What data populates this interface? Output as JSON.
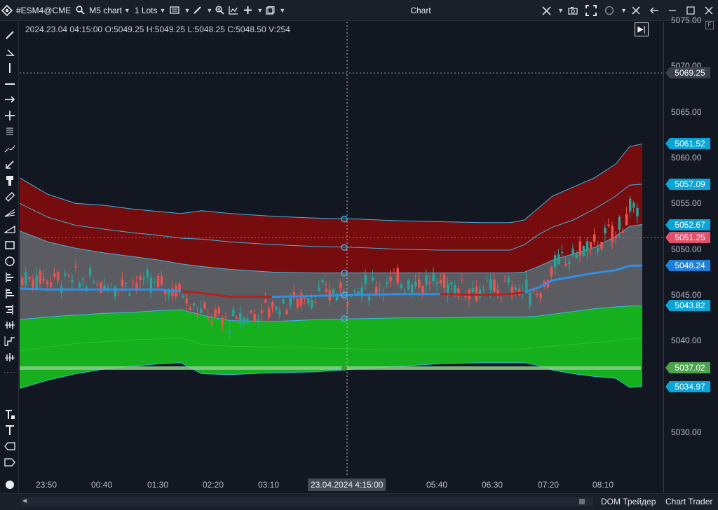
{
  "titlebar": {
    "logo_icon": "app-logo-icon",
    "symbol": "#ESM4@CME",
    "chart_type": "M5 chart",
    "lots": "1 Lots",
    "window_title": "Chart"
  },
  "ohlc_readout": "2024.23.04 04:15:00 O:5049.25 H:5049.25 L:5048.25 C:5048.50 V:254",
  "corner_button": "F",
  "price_axis": {
    "ticks": [
      "5075.00",
      "5070.00",
      "5065.00",
      "5060.00",
      "5055.00",
      "5050.00",
      "5045.00",
      "5040.00",
      "5035.00",
      "5030.00"
    ],
    "labels": [
      {
        "value": "5069.25",
        "color": "#3a3f4b"
      },
      {
        "value": "5061.52",
        "color": "#0aa5d6"
      },
      {
        "value": "5057.09",
        "color": "#0aa5d6"
      },
      {
        "value": "5052.67",
        "color": "#0aa5d6"
      },
      {
        "value": "5051.25",
        "color": "#e0506a"
      },
      {
        "value": "5048.24",
        "color": "#1e7fd8"
      },
      {
        "value": "5043.82",
        "color": "#0aa5d6"
      },
      {
        "value": "5037.02",
        "color": "#4da34d"
      },
      {
        "value": "5034.97",
        "color": "#0aa5d6"
      }
    ]
  },
  "time_axis": {
    "ticks": [
      "23:50",
      "00:40",
      "01:30",
      "02:20",
      "03:10",
      "05:40",
      "06:30",
      "07:20",
      "08:10"
    ],
    "crosshair_label": "23.04.2024 4:15:00"
  },
  "footer": {
    "tab_dom": "DOM Трейдер",
    "tab_chart_trader": "Chart Trader"
  },
  "colors": {
    "background": "#131722",
    "upper_band_fill": "#7a0c0c",
    "middle_band_fill": "#5d5f64",
    "lower_band_fill": "#17b51d",
    "band_line": "#3fb6e0",
    "candle_up": "#26a69a",
    "candle_down": "#ef5350",
    "ma_line": "#2e90e8"
  }
}
